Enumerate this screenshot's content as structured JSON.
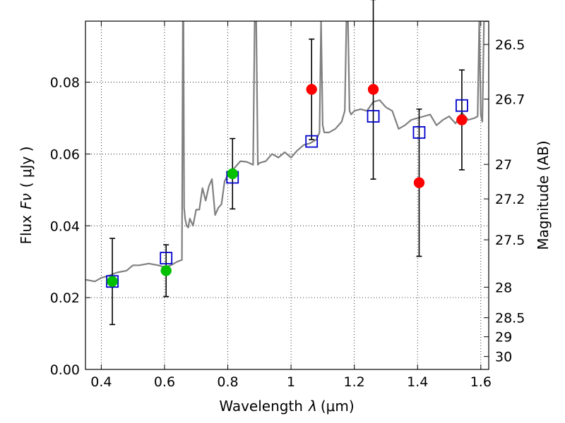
{
  "chart_data": {
    "type": "scatter",
    "xlabel": "Wavelength",
    "xlabel_symbol": "λ",
    "xlabel_unit": "(μm)",
    "ylabel": "Flux",
    "ylabel_symbol": "Fν",
    "ylabel_unit": "( μJy )",
    "y2label": "Magnitude (AB)",
    "xlim": [
      0.35,
      1.625
    ],
    "ylim": [
      0.0,
      0.097
    ],
    "grid": true,
    "x_ticks": [
      0.4,
      0.6,
      0.8,
      1.0,
      1.2,
      1.4,
      1.6
    ],
    "x_tick_labels": [
      "0.4",
      "0.6",
      "0.8",
      "1",
      "1.2",
      "1.4",
      "1.6"
    ],
    "y_ticks": [
      0.0,
      0.02,
      0.04,
      0.06,
      0.08
    ],
    "y_tick_labels": [
      "0.00",
      "0.02",
      "0.04",
      "0.06",
      "0.08"
    ],
    "y2_ticks": [
      {
        "label": "26.5",
        "flux": 0.0905
      },
      {
        "label": "26.7",
        "flux": 0.0753
      },
      {
        "label": "27",
        "flux": 0.0571
      },
      {
        "label": "27.2",
        "flux": 0.0475
      },
      {
        "label": "27.5",
        "flux": 0.0361
      },
      {
        "label": "28",
        "flux": 0.0229
      },
      {
        "label": "28.5",
        "flux": 0.0144
      },
      {
        "label": "29",
        "flux": 0.0091
      },
      {
        "label": "30",
        "flux": 0.0036
      }
    ],
    "colors": {
      "spectrum": "#808080",
      "model_box": "#0000cc",
      "red_point": "#ff0000",
      "green_point": "#00c000",
      "errorbar": "#000000"
    },
    "spectrum": {
      "x": [
        0.35,
        0.38,
        0.4,
        0.42,
        0.45,
        0.48,
        0.5,
        0.52,
        0.55,
        0.58,
        0.6,
        0.62,
        0.64,
        0.655,
        0.658,
        0.66,
        0.662,
        0.665,
        0.67,
        0.675,
        0.68,
        0.69,
        0.7,
        0.71,
        0.72,
        0.73,
        0.74,
        0.75,
        0.76,
        0.77,
        0.78,
        0.79,
        0.8,
        0.82,
        0.84,
        0.86,
        0.88,
        0.885,
        0.89,
        0.895,
        0.9,
        0.92,
        0.94,
        0.96,
        0.98,
        1.0,
        1.02,
        1.04,
        1.06,
        1.08,
        1.09,
        1.095,
        1.1,
        1.105,
        1.12,
        1.14,
        1.16,
        1.17,
        1.175,
        1.18,
        1.185,
        1.19,
        1.2,
        1.22,
        1.24,
        1.26,
        1.28,
        1.3,
        1.32,
        1.34,
        1.36,
        1.38,
        1.4,
        1.42,
        1.44,
        1.46,
        1.48,
        1.5,
        1.52,
        1.54,
        1.56,
        1.58,
        1.59,
        1.595,
        1.6,
        1.605,
        1.61,
        1.625
      ],
      "y": [
        0.025,
        0.0245,
        0.0255,
        0.026,
        0.027,
        0.0275,
        0.029,
        0.029,
        0.0295,
        0.029,
        0.0285,
        0.029,
        0.03,
        0.0305,
        0.097,
        0.097,
        0.045,
        0.042,
        0.04,
        0.0395,
        0.042,
        0.04,
        0.0445,
        0.0445,
        0.0505,
        0.047,
        0.051,
        0.053,
        0.043,
        0.045,
        0.046,
        0.0525,
        0.054,
        0.056,
        0.058,
        0.0578,
        0.057,
        0.097,
        0.097,
        0.057,
        0.0575,
        0.058,
        0.06,
        0.059,
        0.0605,
        0.059,
        0.061,
        0.0625,
        0.063,
        0.064,
        0.066,
        0.097,
        0.068,
        0.066,
        0.066,
        0.067,
        0.069,
        0.072,
        0.097,
        0.097,
        0.072,
        0.071,
        0.072,
        0.0725,
        0.072,
        0.0745,
        0.075,
        0.073,
        0.072,
        0.067,
        0.068,
        0.0695,
        0.07,
        0.0705,
        0.071,
        0.068,
        0.0695,
        0.0705,
        0.0685,
        0.0715,
        0.0695,
        0.07,
        0.0705,
        0.097,
        0.071,
        0.069,
        0.097,
        0.097
      ]
    },
    "model_points": [
      {
        "x": 0.435,
        "y": 0.0245
      },
      {
        "x": 0.605,
        "y": 0.031
      },
      {
        "x": 0.815,
        "y": 0.0535
      },
      {
        "x": 1.065,
        "y": 0.0635
      },
      {
        "x": 1.26,
        "y": 0.0705
      },
      {
        "x": 1.405,
        "y": 0.066
      },
      {
        "x": 1.54,
        "y": 0.0735
      }
    ],
    "observed_points": [
      {
        "x": 0.435,
        "y": 0.0245,
        "err": 0.012,
        "color": "green"
      },
      {
        "x": 0.605,
        "y": 0.0275,
        "err": 0.0072,
        "color": "green"
      },
      {
        "x": 0.815,
        "y": 0.0545,
        "err": 0.0098,
        "color": "green"
      },
      {
        "x": 1.065,
        "y": 0.078,
        "err": 0.014,
        "color": "red"
      },
      {
        "x": 1.26,
        "y": 0.078,
        "err": 0.025,
        "color": "red"
      },
      {
        "x": 1.405,
        "y": 0.052,
        "err": 0.0205,
        "color": "red"
      },
      {
        "x": 1.54,
        "y": 0.0695,
        "err": 0.0139,
        "color": "red"
      }
    ]
  }
}
